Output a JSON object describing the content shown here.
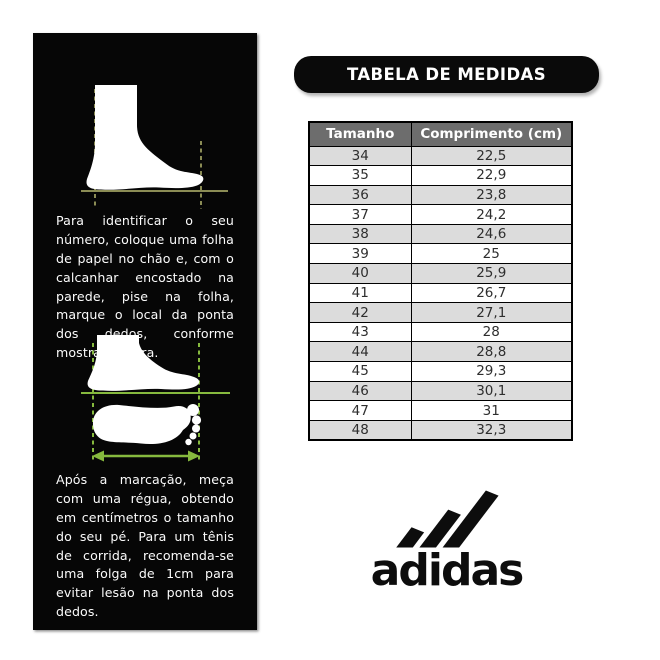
{
  "header": {
    "title": "TABELA DE MEDIDAS"
  },
  "instructions": {
    "step1": "Para identificar o seu número, coloque uma folha de papel no chão e, com o calcanhar encostado na parede, pise na folha, marque o local da ponta dos dedos, conforme mostra a figura.",
    "step2": "Após a marcação, meça com uma régua, obtendo em centímetros o tamanho do seu pé. Para um tênis de corrida, recomenda-se uma folga de 1cm para evitar lesão na ponta dos dedos."
  },
  "size_table": {
    "headers": [
      "Tamanho",
      "Comprimento (cm)"
    ],
    "rows": [
      [
        "34",
        "22,5"
      ],
      [
        "35",
        "22,9"
      ],
      [
        "36",
        "23,8"
      ],
      [
        "37",
        "24,2"
      ],
      [
        "38",
        "24,6"
      ],
      [
        "39",
        "25"
      ],
      [
        "40",
        "25,9"
      ],
      [
        "41",
        "26,7"
      ],
      [
        "42",
        "27,1"
      ],
      [
        "43",
        "28"
      ],
      [
        "44",
        "28,8"
      ],
      [
        "45",
        "29,3"
      ],
      [
        "46",
        "30,1"
      ],
      [
        "47",
        "31"
      ],
      [
        "48",
        "32,3"
      ]
    ]
  },
  "brand": {
    "wordmark": "adidas"
  },
  "chart_data": {
    "type": "table",
    "title": "TABELA DE MEDIDAS",
    "columns": [
      "Tamanho",
      "Comprimento (cm)"
    ],
    "sizes": [
      34,
      35,
      36,
      37,
      38,
      39,
      40,
      41,
      42,
      43,
      44,
      45,
      46,
      47,
      48
    ],
    "lengths_cm": [
      22.5,
      22.9,
      23.8,
      24.2,
      24.6,
      25,
      25.9,
      26.7,
      27.1,
      28,
      28.8,
      29.3,
      30.1,
      31,
      32.3
    ],
    "decimal_separator": ",",
    "row_striping": "alternating gray/white starting gray"
  },
  "colors": {
    "panel_bg": "#060606",
    "pill_bg": "#0a0a0a",
    "table_header_bg": "#6d6d6d",
    "row_alt": "#dcdcdc",
    "measure_olive": "#8b8c55",
    "measure_green": "#86b93e"
  }
}
